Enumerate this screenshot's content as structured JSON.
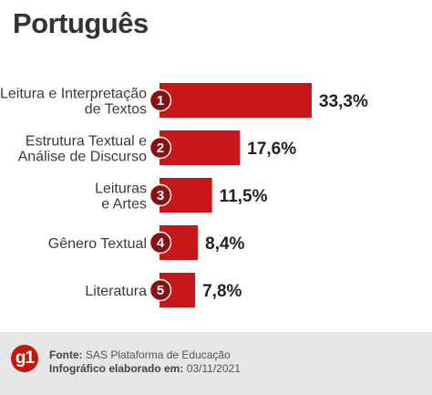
{
  "title": "Português",
  "chart_data": {
    "type": "bar",
    "orientation": "horizontal",
    "categories": [
      [
        "Leitura e Interpretação",
        "de Textos"
      ],
      [
        "Estrutura Textual e",
        "Análise de Discurso"
      ],
      [
        "Leituras",
        "e Artes"
      ],
      [
        "Gênero Textual"
      ],
      [
        "Literatura"
      ]
    ],
    "ranks": [
      "1",
      "2",
      "3",
      "4",
      "5"
    ],
    "values": [
      33.3,
      17.6,
      11.5,
      8.4,
      7.8
    ],
    "value_labels": [
      "33,3%",
      "17,6%",
      "11,5%",
      "8,4%",
      "7,8%"
    ],
    "xlim": [
      0,
      33.3
    ],
    "grid": false,
    "colors": {
      "bar": "#c8171b",
      "rank_circle": "#8b0f12",
      "text": "#3a3a3a"
    }
  },
  "footer": {
    "logo": "g1",
    "source_label": "Fonte:",
    "source_value": "SAS Plataforma de Educação",
    "credit_label": "Infográfico elaborado em:",
    "credit_value": "03/11/2021"
  }
}
